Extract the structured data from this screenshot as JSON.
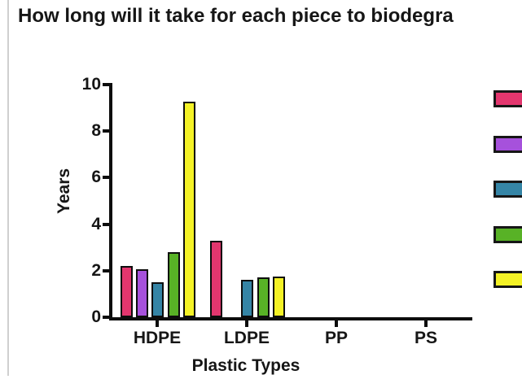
{
  "title": "How long will it take for each piece to biodegra",
  "chart_data": {
    "type": "bar",
    "title": "How long will it take for each piece to biodegra",
    "categories": [
      "HDPE",
      "LDPE",
      "PP",
      "PS"
    ],
    "series": [
      {
        "name": "pink-series",
        "color": "#E3366E",
        "values": [
          2.2,
          3.3,
          0,
          0
        ]
      },
      {
        "name": "purple-series",
        "color": "#A651DC",
        "values": [
          2.05,
          0,
          0,
          0
        ]
      },
      {
        "name": "teal-series",
        "color": "#3585A6",
        "values": [
          1.5,
          1.6,
          0,
          0
        ]
      },
      {
        "name": "green-series",
        "color": "#58B226",
        "values": [
          2.8,
          1.7,
          0,
          0
        ]
      },
      {
        "name": "yellow-series",
        "color": "#F4F226",
        "values": [
          9.25,
          1.75,
          0,
          0
        ]
      }
    ],
    "xlabel": "Plastic Types",
    "ylabel": "Years",
    "ylim": [
      0,
      10
    ],
    "yticks": [
      0,
      2,
      4,
      6,
      8,
      10
    ],
    "grid": false,
    "legend_position": "right",
    "legend_labels_visible": false,
    "axis_color": "#0d0d0d",
    "bar_border_color": "#0d0d0d"
  }
}
